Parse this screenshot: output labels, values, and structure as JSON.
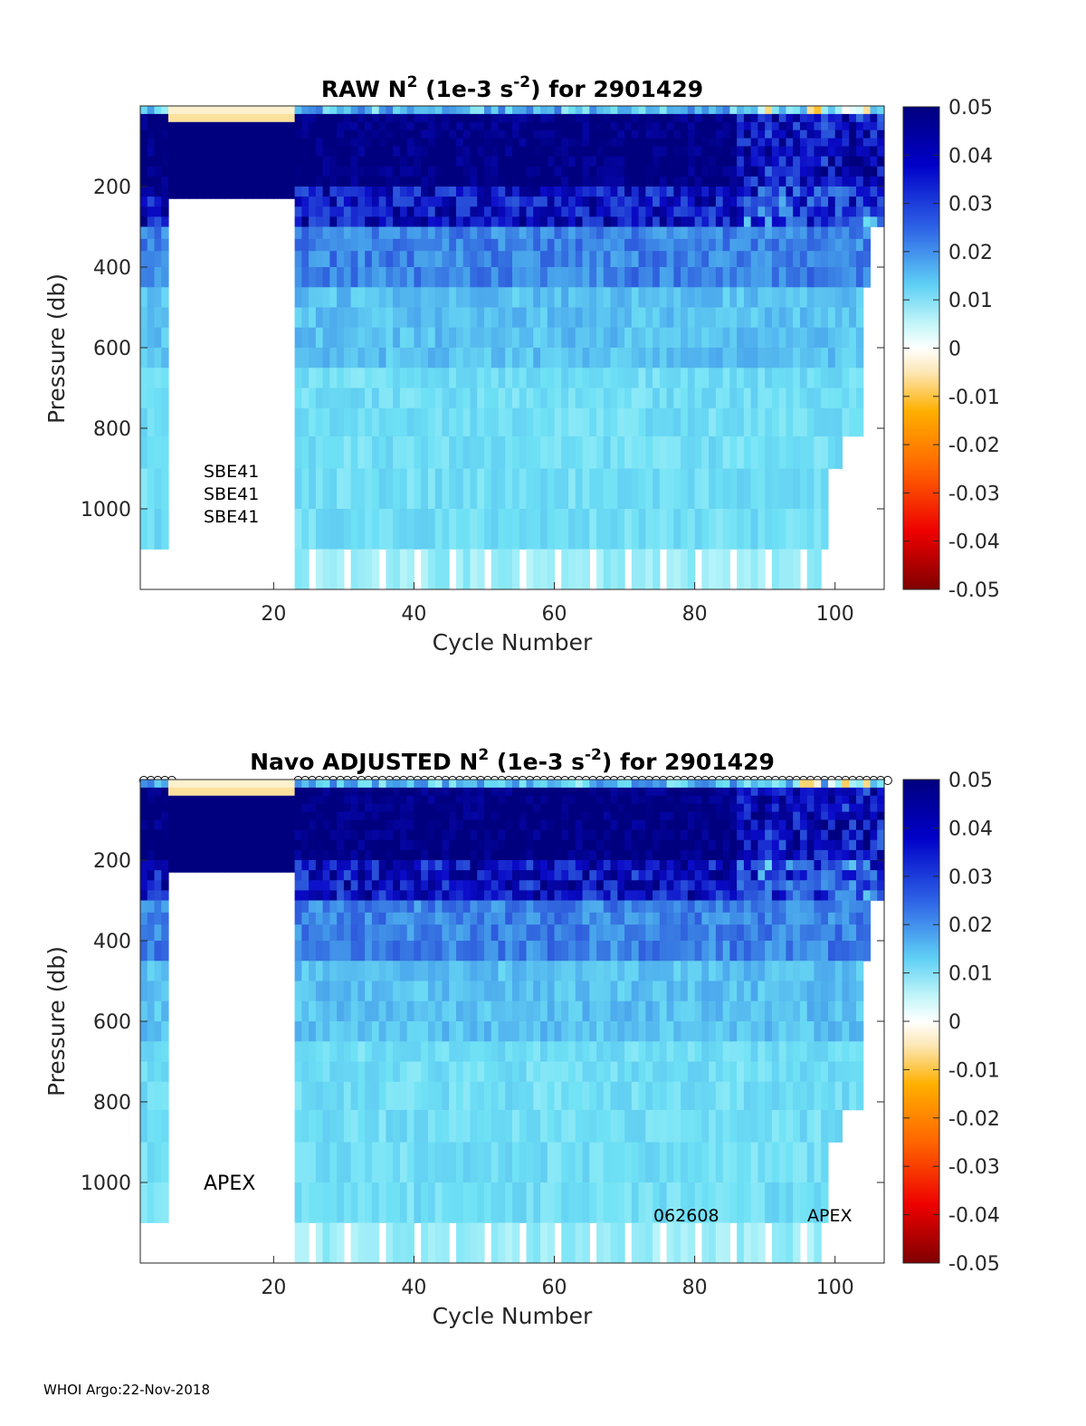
{
  "footer": "WHOI Argo:22-Nov-2018",
  "chart_data": [
    {
      "type": "heatmap",
      "title": "RAW N² (1e-3 s⁻²) for 2901429",
      "title_parts": {
        "pre": "RAW N",
        "sup1": "2",
        "mid": " (1e-3 s",
        "sup2": "-2",
        "post": ") for 2901429"
      },
      "xlabel": "Cycle Number",
      "ylabel": "Pressure (db)",
      "xlim": [
        1,
        107
      ],
      "ylim": [
        0,
        1200
      ],
      "y_reversed": true,
      "xticks": [
        20,
        40,
        60,
        80,
        100
      ],
      "yticks": [
        200,
        400,
        600,
        800,
        1000
      ],
      "colorbar": {
        "clim": [
          -0.05,
          0.05
        ],
        "ticks": [
          "0.05",
          "0.04",
          "0.03",
          "0.02",
          "0.01",
          "0",
          "-0.01",
          "-0.02",
          "-0.03",
          "-0.04",
          "-0.05"
        ]
      },
      "annotations": [
        "SBE41",
        "SBE41",
        "SBE41"
      ],
      "gap_cycles": [
        5,
        22
      ]
    },
    {
      "type": "heatmap",
      "title": "Navo  ADJUSTED N² (1e-3 s⁻²) for 2901429",
      "title_parts": {
        "pre": "Navo  ADJUSTED N",
        "sup1": "2",
        "mid": " (1e-3 s",
        "sup2": "-2",
        "post": ") for 2901429"
      },
      "xlabel": "Cycle Number",
      "ylabel": "Pressure (db)",
      "xlim": [
        1,
        107
      ],
      "ylim": [
        0,
        1200
      ],
      "y_reversed": true,
      "xticks": [
        20,
        40,
        60,
        80,
        100
      ],
      "yticks": [
        200,
        400,
        600,
        800,
        1000
      ],
      "colorbar": {
        "clim": [
          -0.05,
          0.05
        ],
        "ticks": [
          "0.05",
          "0.04",
          "0.03",
          "0.02",
          "0.01",
          "0",
          "-0.01",
          "-0.02",
          "-0.03",
          "-0.04",
          "-0.05"
        ]
      },
      "annotations": [
        "APEX",
        "062608",
        "APEX"
      ],
      "qc_markers": "o",
      "gap_cycles": [
        5,
        22
      ]
    }
  ]
}
